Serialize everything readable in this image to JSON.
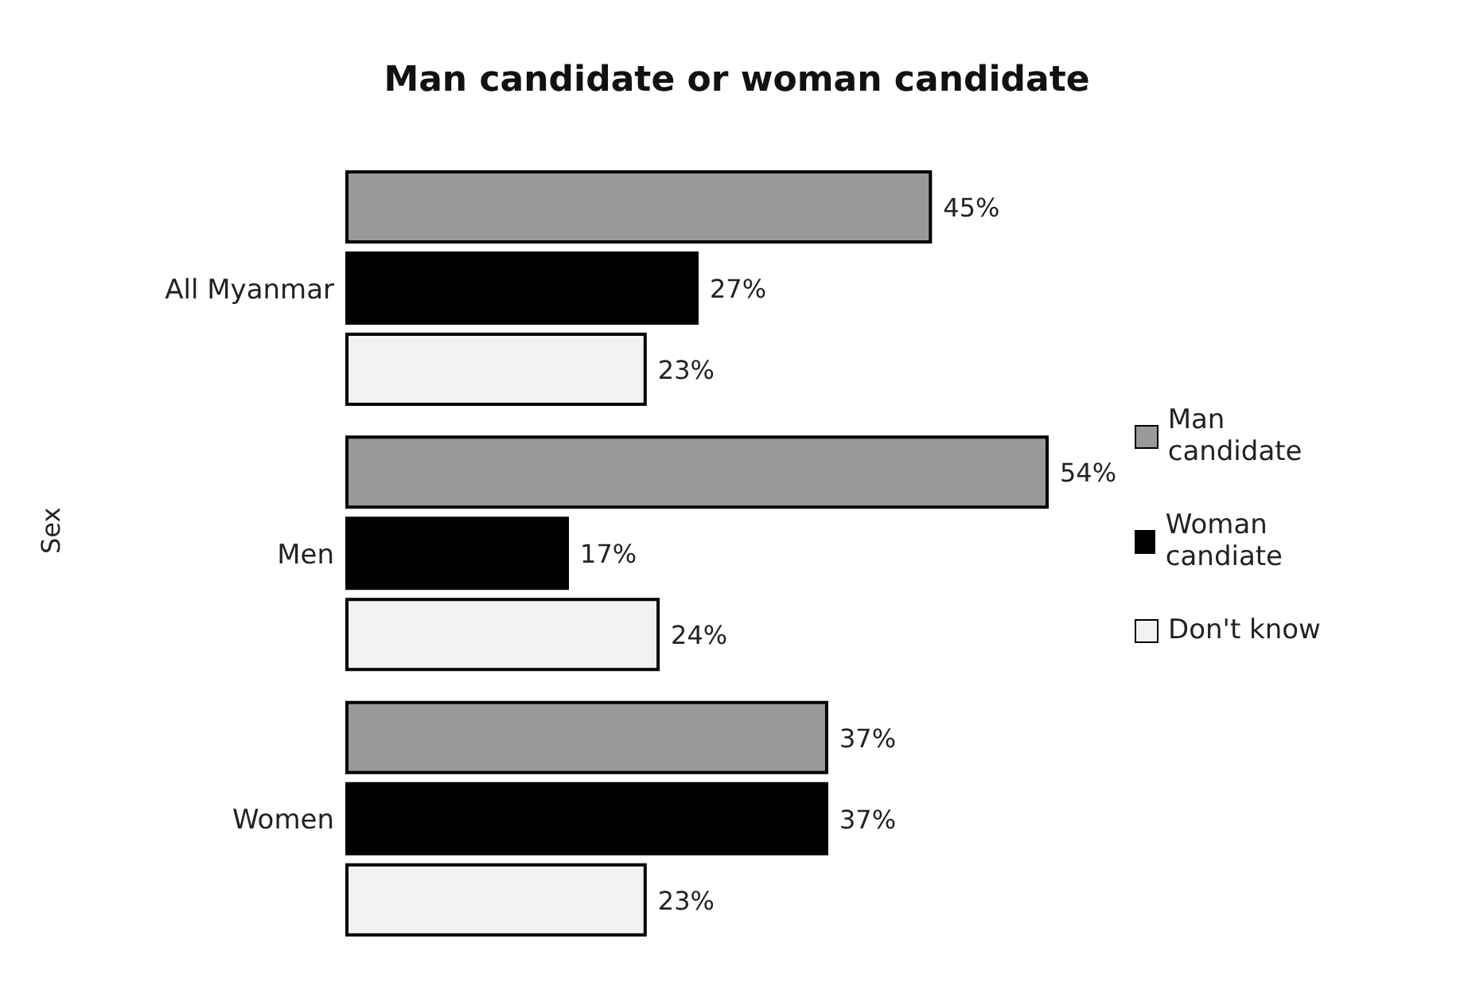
{
  "chart_data": {
    "type": "bar",
    "orientation": "horizontal",
    "title": "Man candidate or woman candidate",
    "ylabel": "Sex",
    "categories": [
      "All Myanmar",
      "Men",
      "Women"
    ],
    "series": [
      {
        "name": "Man candidate",
        "color": "#999999",
        "values": [
          45,
          54,
          37
        ],
        "value_labels": [
          "45%",
          "54%",
          "37%"
        ]
      },
      {
        "name": "Woman candiate",
        "color": "#000000",
        "values": [
          27,
          17,
          37
        ],
        "value_labels": [
          "27%",
          "17%",
          "37%"
        ]
      },
      {
        "name": "Don't know",
        "color": "#f2f2f2",
        "values": [
          23,
          24,
          23
        ],
        "value_labels": [
          "23%",
          "24%",
          "23%"
        ]
      }
    ],
    "legend": "right",
    "grid": false
  }
}
